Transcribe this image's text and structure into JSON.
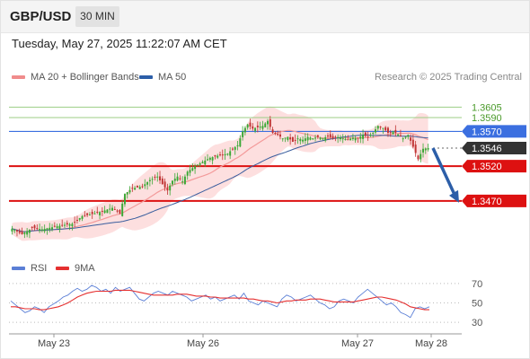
{
  "header": {
    "symbol": "GBP/USD",
    "timeframe": "30 MIN"
  },
  "datetime": "Tuesday, May 27, 2025 11:22:07 AM CET",
  "legend": {
    "items": [
      {
        "label": "MA 20 + Bollinger Bands",
        "color": "#f08c8c"
      },
      {
        "label": "MA 50",
        "color": "#2c5ea8"
      }
    ]
  },
  "credit": "Research © 2025 Trading Central",
  "rsi_legend": {
    "items": [
      {
        "label": "RSI",
        "color": "#5b7fd6"
      },
      {
        "label": "9MA",
        "color": "#e53030"
      }
    ]
  },
  "price_levels": [
    {
      "label": "1.3605",
      "value": 1.3605,
      "kind": "green-line"
    },
    {
      "label": "1.3590",
      "value": 1.359,
      "kind": "green-line"
    },
    {
      "label": "1.3570",
      "value": 1.357,
      "kind": "blue-box"
    },
    {
      "label": "1.3546",
      "value": 1.3546,
      "kind": "dark-box"
    },
    {
      "label": "1.3520",
      "value": 1.352,
      "kind": "red-box"
    },
    {
      "label": "1.3470",
      "value": 1.347,
      "kind": "red-box"
    }
  ],
  "colors": {
    "bull": "#3aa835",
    "bear": "#c03434",
    "support": "#dd1111",
    "resistance": "#3b6fe0",
    "green_level": "#9cce84",
    "green_text": "#4a9a2a",
    "current": "#333333",
    "band": "#fdd9d9",
    "ma20": "#f39a9a",
    "ma50": "#3a5e9e",
    "arrow": "#2c5ea8"
  },
  "chart_data": [
    {
      "type": "candlestick",
      "title": "",
      "ylim": [
        1.34,
        1.363
      ],
      "x_tick_labels": [
        "May 23",
        "May 26",
        "May 27",
        "May 28"
      ],
      "current_price": 1.3546,
      "forecast_arrow": {
        "from": 1.3546,
        "to": 1.347
      },
      "close_path": [
        [
          0,
          1.343
        ],
        [
          4,
          1.3422
        ],
        [
          8,
          1.3431
        ],
        [
          12,
          1.3429
        ],
        [
          16,
          1.3432
        ],
        [
          20,
          1.3435
        ],
        [
          24,
          1.3437
        ],
        [
          28,
          1.3448
        ],
        [
          32,
          1.3451
        ],
        [
          36,
          1.3455
        ],
        [
          40,
          1.346
        ],
        [
          43,
          1.3452
        ],
        [
          45,
          1.348
        ],
        [
          48,
          1.3488
        ],
        [
          52,
          1.3491
        ],
        [
          55,
          1.35
        ],
        [
          58,
          1.3505
        ],
        [
          60,
          1.3494
        ],
        [
          62,
          1.3485
        ],
        [
          64,
          1.3499
        ],
        [
          66,
          1.3505
        ],
        [
          68,
          1.3498
        ],
        [
          70,
          1.3512
        ],
        [
          73,
          1.352
        ],
        [
          76,
          1.3526
        ],
        [
          79,
          1.3532
        ],
        [
          82,
          1.3535
        ],
        [
          86,
          1.3538
        ],
        [
          88,
          1.3545
        ],
        [
          90,
          1.355
        ],
        [
          92,
          1.357
        ],
        [
          94,
          1.358
        ],
        [
          96,
          1.3574
        ],
        [
          98,
          1.3576
        ],
        [
          100,
          1.3578
        ],
        [
          102,
          1.3585
        ],
        [
          104,
          1.3568
        ],
        [
          106,
          1.3565
        ],
        [
          108,
          1.356
        ],
        [
          110,
          1.3562
        ],
        [
          112,
          1.3555
        ],
        [
          114,
          1.356
        ],
        [
          116,
          1.3558
        ],
        [
          118,
          1.3562
        ],
        [
          120,
          1.356
        ],
        [
          122,
          1.3562
        ],
        [
          124,
          1.356
        ],
        [
          126,
          1.3563
        ],
        [
          128,
          1.356
        ],
        [
          130,
          1.3562
        ],
        [
          132,
          1.356
        ],
        [
          134,
          1.3558
        ],
        [
          136,
          1.3561
        ],
        [
          138,
          1.356
        ],
        [
          140,
          1.3565
        ],
        [
          142,
          1.3562
        ],
        [
          144,
          1.3568
        ],
        [
          146,
          1.3578
        ],
        [
          148,
          1.3575
        ],
        [
          150,
          1.3568
        ],
        [
          152,
          1.357
        ],
        [
          154,
          1.3566
        ],
        [
          156,
          1.356
        ],
        [
          158,
          1.3565
        ],
        [
          160,
          1.3548
        ],
        [
          162,
          1.353
        ],
        [
          164,
          1.3545
        ],
        [
          166,
          1.3546
        ]
      ]
    },
    {
      "type": "line",
      "title": "",
      "ylim": [
        20,
        80
      ],
      "y_ticks": [
        70,
        50,
        30
      ],
      "series": [
        {
          "name": "RSI",
          "color": "#5b7fd6",
          "values": [
            52,
            48,
            44,
            40,
            42,
            46,
            44,
            40,
            46,
            49,
            52,
            56,
            58,
            62,
            65,
            62,
            64,
            68,
            66,
            62,
            64,
            60,
            66,
            62,
            64,
            66,
            60,
            54,
            52,
            56,
            60,
            62,
            60,
            58,
            62,
            60,
            58,
            56,
            52,
            54,
            56,
            58,
            54,
            56,
            52,
            54,
            56,
            58,
            54,
            60,
            52,
            50,
            48,
            52,
            50,
            48,
            46,
            54,
            58,
            56,
            52,
            54,
            56,
            58,
            54,
            50,
            48,
            44,
            46,
            52,
            54,
            52,
            50,
            56,
            60,
            64,
            60,
            56,
            52,
            48,
            50,
            46,
            40,
            38,
            35,
            44,
            46,
            44,
            46
          ]
        },
        {
          "name": "9MA",
          "color": "#e53030",
          "values": [
            46,
            46,
            45,
            44,
            44,
            44,
            43,
            43,
            44,
            45,
            46,
            48,
            50,
            53,
            56,
            58,
            60,
            61,
            62,
            62,
            62,
            62,
            63,
            63,
            63,
            63,
            62,
            61,
            60,
            59,
            58,
            58,
            58,
            58,
            58,
            59,
            59,
            59,
            58,
            57,
            57,
            57,
            56,
            56,
            55,
            55,
            55,
            55,
            55,
            55,
            54,
            54,
            53,
            52,
            52,
            51,
            50,
            51,
            52,
            52,
            53,
            53,
            53,
            54,
            54,
            54,
            53,
            52,
            51,
            51,
            51,
            51,
            51,
            52,
            53,
            54,
            55,
            56,
            56,
            55,
            54,
            53,
            51,
            49,
            46,
            45,
            44,
            43,
            43
          ]
        }
      ]
    }
  ]
}
